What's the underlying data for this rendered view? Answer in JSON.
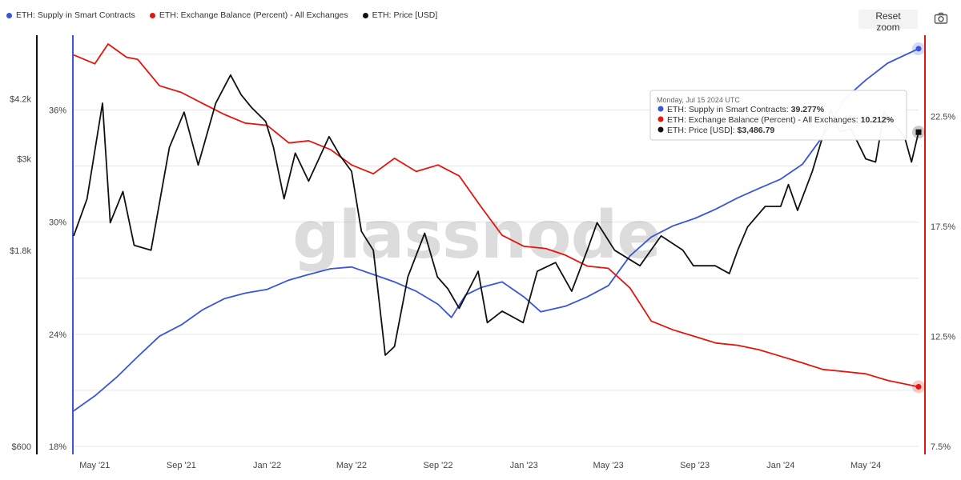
{
  "legend": [
    {
      "label": "ETH: Supply in Smart Contracts",
      "color": "#3b55d9"
    },
    {
      "label": "ETH: Exchange Balance (Percent) - All Exchanges",
      "color": "#e3150d"
    },
    {
      "label": "ETH: Price [USD]",
      "color": "#111111"
    }
  ],
  "toolbar": {
    "reset_zoom_label": "Reset zoom",
    "camera_icon": "camera-icon"
  },
  "watermark": "glassnode",
  "tooltip": {
    "date": "Monday, Jul 15 2024 UTC",
    "rows": [
      {
        "label": "ETH: Supply in Smart Contracts:",
        "value": "39.277%",
        "color": "#3b55d9"
      },
      {
        "label": "ETH: Exchange Balance (Percent) - All Exchanges:",
        "value": "10.212%",
        "color": "#e3150d"
      },
      {
        "label": "ETH: Price [USD]:",
        "value": "$3,486.79",
        "color": "#111111"
      }
    ]
  },
  "chart_data": {
    "type": "line",
    "x_tick_labels": [
      "May '21",
      "Sep '21",
      "Jan '22",
      "May '22",
      "Sep '22",
      "Jan '23",
      "May '23",
      "Sep '23",
      "Jan '24",
      "May '24"
    ],
    "x_range": [
      "2021-04-01",
      "2024-07-15"
    ],
    "axes": {
      "price": {
        "scale": "log",
        "range": [
          600,
          6000
        ],
        "ticks": [
          "$600",
          "$1.8k",
          "$3k",
          "$4.2k"
        ],
        "tick_values": [
          600,
          1800,
          3000,
          4200
        ],
        "position": "outer-left"
      },
      "supply": {
        "range": [
          18,
          40
        ],
        "ticks": [
          "18%",
          "24%",
          "30%",
          "36%"
        ],
        "tick_values": [
          18,
          24,
          30,
          36
        ],
        "position": "inner-left"
      },
      "exchange": {
        "range": [
          7.5,
          26.2
        ],
        "ticks": [
          "7.5%",
          "12.5%",
          "17.5%",
          "22.5%"
        ],
        "tick_values": [
          7.5,
          12.5,
          17.5,
          22.5
        ],
        "position": "right"
      }
    },
    "grid": true,
    "series": [
      {
        "name": "ETH: Supply in Smart Contracts",
        "axis": "supply",
        "color": "#3b55d9",
        "points": [
          [
            "2021-04-01",
            19.9
          ],
          [
            "2021-05-01",
            20.7
          ],
          [
            "2021-06-01",
            21.7
          ],
          [
            "2021-07-01",
            22.8
          ],
          [
            "2021-08-01",
            23.9
          ],
          [
            "2021-09-01",
            24.5
          ],
          [
            "2021-10-01",
            25.3
          ],
          [
            "2021-11-01",
            25.9
          ],
          [
            "2021-12-01",
            26.2
          ],
          [
            "2022-01-01",
            26.4
          ],
          [
            "2022-02-01",
            26.9
          ],
          [
            "2022-03-01",
            27.2
          ],
          [
            "2022-04-01",
            27.5
          ],
          [
            "2022-05-01",
            27.6
          ],
          [
            "2022-06-01",
            27.2
          ],
          [
            "2022-07-01",
            26.8
          ],
          [
            "2022-08-01",
            26.3
          ],
          [
            "2022-09-01",
            25.6
          ],
          [
            "2022-09-20",
            24.9
          ],
          [
            "2022-10-10",
            26.1
          ],
          [
            "2022-11-01",
            26.5
          ],
          [
            "2022-12-01",
            26.8
          ],
          [
            "2023-01-01",
            26.0
          ],
          [
            "2023-01-25",
            25.2
          ],
          [
            "2023-03-01",
            25.5
          ],
          [
            "2023-04-01",
            26.0
          ],
          [
            "2023-05-01",
            26.6
          ],
          [
            "2023-06-01",
            28.2
          ],
          [
            "2023-07-01",
            29.2
          ],
          [
            "2023-08-01",
            29.8
          ],
          [
            "2023-09-01",
            30.2
          ],
          [
            "2023-10-01",
            30.7
          ],
          [
            "2023-11-01",
            31.3
          ],
          [
            "2023-12-01",
            31.8
          ],
          [
            "2024-01-01",
            32.3
          ],
          [
            "2024-02-01",
            33.1
          ],
          [
            "2024-03-01",
            34.6
          ],
          [
            "2024-04-01",
            36.6
          ],
          [
            "2024-05-01",
            37.6
          ],
          [
            "2024-06-01",
            38.5
          ],
          [
            "2024-07-15",
            39.277
          ]
        ]
      },
      {
        "name": "ETH: Exchange Balance (Percent) - All Exchanges",
        "axis": "exchange",
        "color": "#e3150d",
        "points": [
          [
            "2021-04-01",
            25.3
          ],
          [
            "2021-05-01",
            24.9
          ],
          [
            "2021-05-20",
            25.8
          ],
          [
            "2021-06-15",
            25.2
          ],
          [
            "2021-07-01",
            25.1
          ],
          [
            "2021-08-01",
            23.9
          ],
          [
            "2021-09-01",
            23.6
          ],
          [
            "2021-10-01",
            23.1
          ],
          [
            "2021-11-01",
            22.6
          ],
          [
            "2021-12-01",
            22.2
          ],
          [
            "2022-01-01",
            22.1
          ],
          [
            "2022-02-01",
            21.3
          ],
          [
            "2022-03-01",
            21.4
          ],
          [
            "2022-04-01",
            21.0
          ],
          [
            "2022-05-01",
            20.3
          ],
          [
            "2022-06-01",
            19.9
          ],
          [
            "2022-07-01",
            20.6
          ],
          [
            "2022-08-01",
            20.0
          ],
          [
            "2022-09-01",
            20.3
          ],
          [
            "2022-10-01",
            19.8
          ],
          [
            "2022-11-01",
            18.4
          ],
          [
            "2022-12-01",
            17.1
          ],
          [
            "2023-01-01",
            16.6
          ],
          [
            "2023-02-01",
            16.5
          ],
          [
            "2023-03-01",
            16.2
          ],
          [
            "2023-04-01",
            15.7
          ],
          [
            "2023-05-01",
            15.6
          ],
          [
            "2023-06-01",
            14.7
          ],
          [
            "2023-07-01",
            13.2
          ],
          [
            "2023-08-01",
            12.8
          ],
          [
            "2023-09-01",
            12.5
          ],
          [
            "2023-10-01",
            12.2
          ],
          [
            "2023-11-01",
            12.1
          ],
          [
            "2023-12-01",
            11.9
          ],
          [
            "2024-01-01",
            11.6
          ],
          [
            "2024-02-01",
            11.3
          ],
          [
            "2024-03-01",
            11.0
          ],
          [
            "2024-04-01",
            10.9
          ],
          [
            "2024-05-01",
            10.8
          ],
          [
            "2024-06-01",
            10.5
          ],
          [
            "2024-07-15",
            10.212
          ]
        ]
      },
      {
        "name": "ETH: Price [USD]",
        "axis": "price",
        "color": "#111111",
        "points": [
          [
            "2021-04-01",
            1950
          ],
          [
            "2021-04-20",
            2400
          ],
          [
            "2021-05-12",
            4100
          ],
          [
            "2021-05-23",
            2100
          ],
          [
            "2021-06-10",
            2500
          ],
          [
            "2021-06-26",
            1850
          ],
          [
            "2021-07-20",
            1800
          ],
          [
            "2021-08-15",
            3200
          ],
          [
            "2021-09-05",
            3900
          ],
          [
            "2021-09-25",
            2900
          ],
          [
            "2021-10-20",
            4100
          ],
          [
            "2021-11-10",
            4800
          ],
          [
            "2021-11-25",
            4300
          ],
          [
            "2021-12-10",
            4000
          ],
          [
            "2021-12-30",
            3700
          ],
          [
            "2022-01-10",
            3200
          ],
          [
            "2022-01-25",
            2400
          ],
          [
            "2022-02-10",
            3100
          ],
          [
            "2022-03-01",
            2650
          ],
          [
            "2022-03-30",
            3400
          ],
          [
            "2022-04-15",
            3050
          ],
          [
            "2022-05-01",
            2800
          ],
          [
            "2022-05-15",
            2000
          ],
          [
            "2022-06-01",
            1800
          ],
          [
            "2022-06-18",
            1000
          ],
          [
            "2022-07-01",
            1050
          ],
          [
            "2022-07-20",
            1550
          ],
          [
            "2022-08-13",
            1980
          ],
          [
            "2022-08-31",
            1550
          ],
          [
            "2022-09-15",
            1450
          ],
          [
            "2022-10-01",
            1300
          ],
          [
            "2022-10-28",
            1600
          ],
          [
            "2022-11-10",
            1200
          ],
          [
            "2022-12-01",
            1280
          ],
          [
            "2022-12-31",
            1200
          ],
          [
            "2023-01-20",
            1600
          ],
          [
            "2023-02-15",
            1680
          ],
          [
            "2023-03-10",
            1430
          ],
          [
            "2023-04-01",
            1800
          ],
          [
            "2023-04-15",
            2100
          ],
          [
            "2023-05-10",
            1800
          ],
          [
            "2023-06-15",
            1650
          ],
          [
            "2023-07-15",
            1950
          ],
          [
            "2023-08-15",
            1800
          ],
          [
            "2023-08-30",
            1650
          ],
          [
            "2023-09-30",
            1650
          ],
          [
            "2023-10-20",
            1580
          ],
          [
            "2023-11-01",
            1800
          ],
          [
            "2023-11-15",
            2050
          ],
          [
            "2023-12-10",
            2300
          ],
          [
            "2024-01-01",
            2300
          ],
          [
            "2024-01-12",
            2600
          ],
          [
            "2024-01-25",
            2250
          ],
          [
            "2024-02-15",
            2800
          ],
          [
            "2024-03-12",
            3950
          ],
          [
            "2024-03-25",
            3500
          ],
          [
            "2024-04-10",
            3550
          ],
          [
            "2024-04-25",
            3150
          ],
          [
            "2024-05-01",
            3000
          ],
          [
            "2024-05-15",
            2950
          ],
          [
            "2024-05-27",
            3900
          ],
          [
            "2024-06-10",
            3650
          ],
          [
            "2024-06-25",
            3400
          ],
          [
            "2024-07-05",
            2950
          ],
          [
            "2024-07-15",
            3486.79
          ]
        ]
      }
    ]
  }
}
